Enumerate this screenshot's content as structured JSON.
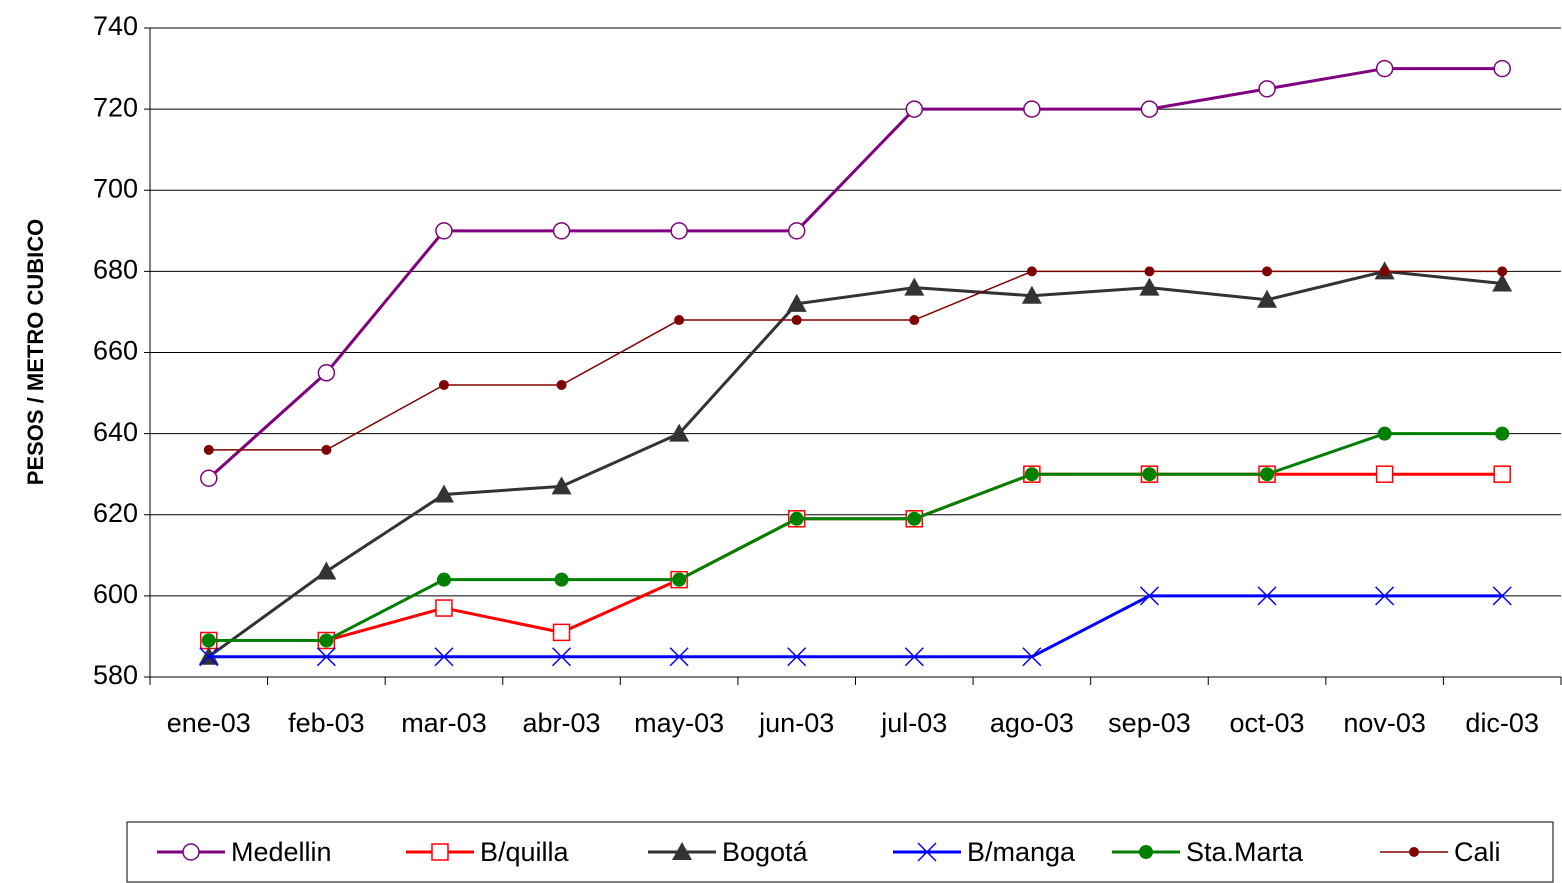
{
  "chart_data": {
    "type": "line",
    "ylabel": "PESOS / METRO CUBICO",
    "categories": [
      "ene-03",
      "feb-03",
      "mar-03",
      "abr-03",
      "may-03",
      "jun-03",
      "jul-03",
      "ago-03",
      "sep-03",
      "oct-03",
      "nov-03",
      "dic-03"
    ],
    "series": [
      {
        "name": "Medellin",
        "color": "#800080",
        "marker": "open-circle",
        "values": [
          629,
          655,
          690,
          690,
          690,
          690,
          720,
          720,
          720,
          725,
          730,
          730
        ]
      },
      {
        "name": "B/quilla",
        "color": "#ff0000",
        "marker": "open-square",
        "values": [
          589,
          589,
          597,
          591,
          604,
          619,
          619,
          630,
          630,
          630,
          630,
          630
        ]
      },
      {
        "name": "Bogotá",
        "color": "#333333",
        "marker": "triangle",
        "values": [
          585,
          606,
          625,
          627,
          640,
          672,
          676,
          674,
          676,
          673,
          680,
          677
        ]
      },
      {
        "name": "B/manga",
        "color": "#0000ff",
        "marker": "cross",
        "values": [
          585,
          585,
          585,
          585,
          585,
          585,
          585,
          585,
          600,
          600,
          600,
          600
        ]
      },
      {
        "name": "Sta.Marta",
        "color": "#008000",
        "marker": "dot",
        "values": [
          589,
          589,
          604,
          604,
          604,
          619,
          619,
          630,
          630,
          630,
          640,
          640
        ]
      },
      {
        "name": "Cali",
        "color": "#800000",
        "marker": "small-dot",
        "values": [
          636,
          636,
          652,
          652,
          668,
          668,
          668,
          680,
          680,
          680,
          680,
          680
        ]
      }
    ],
    "ylim": [
      580,
      740
    ],
    "yticks": [
      580,
      600,
      620,
      640,
      660,
      680,
      700,
      720,
      740
    ],
    "grid": true,
    "legend": "bottom"
  }
}
